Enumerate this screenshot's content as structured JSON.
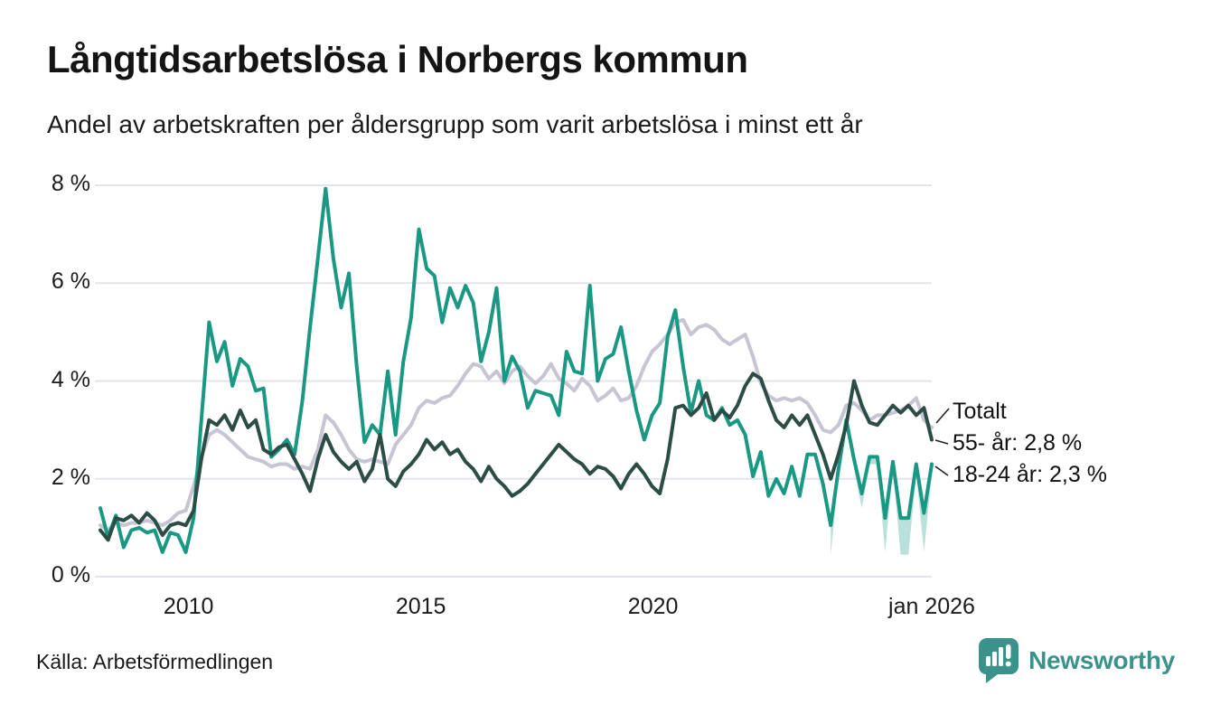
{
  "chart_data": {
    "type": "line",
    "title": "Långtidsarbetslösa i Norbergs kommun",
    "subtitle": "Andel av arbetskraften per åldersgrupp som varit arbetslösa i minst ett år",
    "unit": "%",
    "x_domain": [
      2008.1,
      2026.0
    ],
    "ylim": [
      0,
      8
    ],
    "grid": true,
    "legend_position": "end-of-line-labels",
    "y_ticks": [
      {
        "label": "8 %",
        "value": 8
      },
      {
        "label": "6 %",
        "value": 6
      },
      {
        "label": "4 %",
        "value": 4
      },
      {
        "label": "2 %",
        "value": 2
      },
      {
        "label": "0 %",
        "value": 0
      }
    ],
    "x_ticks": [
      {
        "label": "2010",
        "year": 2010
      },
      {
        "label": "2015",
        "year": 2015
      },
      {
        "label": "2020",
        "year": 2020
      },
      {
        "label": "jan 2026",
        "year": 2026
      }
    ],
    "series": [
      {
        "name": "Totalt",
        "color": "#c7c4d3",
        "values": [
          1.05,
          0.95,
          1.1,
          1.05,
          1.1,
          1.1,
          1.15,
          1.1,
          1.05,
          1.15,
          1.3,
          1.35,
          1.85,
          2.45,
          2.9,
          3.0,
          2.9,
          2.75,
          2.6,
          2.45,
          2.4,
          2.35,
          2.25,
          2.3,
          2.3,
          2.2,
          2.25,
          2.2,
          2.6,
          3.3,
          3.15,
          2.9,
          2.6,
          2.4,
          2.35,
          2.4,
          2.35,
          2.3,
          2.7,
          2.9,
          3.1,
          3.45,
          3.6,
          3.55,
          3.65,
          3.7,
          3.9,
          4.15,
          4.35,
          4.3,
          4.05,
          4.2,
          3.95,
          4.2,
          4.3,
          4.1,
          3.95,
          4.1,
          4.35,
          4.05,
          3.95,
          3.8,
          4.05,
          3.9,
          3.6,
          3.7,
          3.85,
          3.6,
          3.65,
          3.9,
          4.3,
          4.6,
          4.75,
          4.95,
          5.2,
          5.25,
          4.95,
          5.1,
          5.15,
          5.05,
          4.85,
          4.75,
          4.85,
          4.95,
          4.5,
          3.95,
          3.7,
          3.6,
          3.65,
          3.6,
          3.65,
          3.55,
          3.3,
          3.0,
          2.95,
          3.1,
          3.5,
          3.55,
          3.4,
          3.2,
          3.3,
          3.3,
          3.35,
          3.4,
          3.5,
          3.65,
          3.2,
          3.05
        ]
      },
      {
        "name": "18-24 år",
        "color": "#1a9884",
        "values": [
          1.4,
          0.8,
          1.25,
          0.6,
          0.95,
          1.0,
          0.9,
          0.95,
          0.5,
          0.9,
          0.85,
          0.5,
          1.2,
          3.2,
          5.2,
          4.4,
          4.8,
          3.9,
          4.45,
          4.3,
          3.8,
          3.85,
          2.45,
          2.6,
          2.8,
          2.5,
          3.6,
          5.1,
          6.5,
          7.93,
          6.5,
          5.5,
          6.2,
          4.3,
          2.75,
          3.1,
          2.9,
          4.2,
          2.9,
          4.4,
          5.3,
          7.1,
          6.3,
          6.15,
          5.2,
          5.9,
          5.5,
          5.95,
          5.6,
          4.4,
          5.0,
          5.9,
          4.0,
          4.5,
          4.2,
          3.45,
          3.8,
          3.75,
          3.7,
          3.3,
          4.6,
          4.2,
          4.15,
          5.95,
          4.0,
          4.45,
          4.55,
          5.1,
          4.2,
          3.4,
          2.8,
          3.3,
          3.55,
          4.9,
          5.45,
          4.3,
          3.35,
          4.0,
          3.3,
          3.2,
          3.45,
          3.1,
          3.2,
          2.9,
          2.05,
          2.55,
          1.65,
          2.0,
          1.7,
          2.25,
          1.65,
          2.5,
          2.5,
          1.9,
          1.05,
          2.2,
          3.2,
          2.4,
          1.7,
          2.45,
          2.45,
          1.2,
          2.35,
          1.2,
          1.2,
          2.3,
          1.3,
          2.3
        ]
      },
      {
        "name": "55- år",
        "color": "#2c4d46",
        "values": [
          0.95,
          0.75,
          1.2,
          1.15,
          1.25,
          1.1,
          1.3,
          1.15,
          0.85,
          1.05,
          1.1,
          1.05,
          1.35,
          2.4,
          3.2,
          3.1,
          3.3,
          3.0,
          3.4,
          3.05,
          3.2,
          2.6,
          2.5,
          2.65,
          2.7,
          2.4,
          2.1,
          1.75,
          2.4,
          2.9,
          2.55,
          2.35,
          2.2,
          2.35,
          1.95,
          2.2,
          2.9,
          2.0,
          1.85,
          2.15,
          2.3,
          2.5,
          2.8,
          2.6,
          2.75,
          2.5,
          2.6,
          2.35,
          2.2,
          1.95,
          2.25,
          2.0,
          1.85,
          1.65,
          1.75,
          1.9,
          2.1,
          2.3,
          2.5,
          2.7,
          2.55,
          2.4,
          2.3,
          2.1,
          2.25,
          2.2,
          2.05,
          1.8,
          2.1,
          2.3,
          2.1,
          1.85,
          1.7,
          2.4,
          3.45,
          3.5,
          3.3,
          3.45,
          3.75,
          3.2,
          3.4,
          3.25,
          3.5,
          3.9,
          4.15,
          4.05,
          3.6,
          3.2,
          3.05,
          3.3,
          3.1,
          3.3,
          2.9,
          2.5,
          2.0,
          2.5,
          3.1,
          4.0,
          3.5,
          3.15,
          3.1,
          3.3,
          3.5,
          3.35,
          3.5,
          3.3,
          3.45,
          2.8
        ]
      }
    ],
    "uncertainty_band": {
      "series": "18-24 år",
      "color": "rgba(26,152,132,0.3)",
      "start_index": 94,
      "lower": [
        0.45,
        2.0,
        3.0,
        2.2,
        1.4,
        2.3,
        2.3,
        0.5,
        2.2,
        0.45,
        0.45,
        2.1,
        0.5,
        2.1
      ]
    },
    "end_labels": [
      {
        "text": "Totalt"
      },
      {
        "text": "55- år: 2,8 %"
      },
      {
        "text": "18-24 år: 2,3 %"
      }
    ]
  },
  "footer": {
    "source": "Källa: Arbetsförmedlingen",
    "brand": "Newsworthy"
  },
  "colors": {
    "background": "#ffffff",
    "grid": "#e4e3ea",
    "text": "#1a1a1a",
    "leader_line": "#222222",
    "accent": "#3a938b"
  }
}
